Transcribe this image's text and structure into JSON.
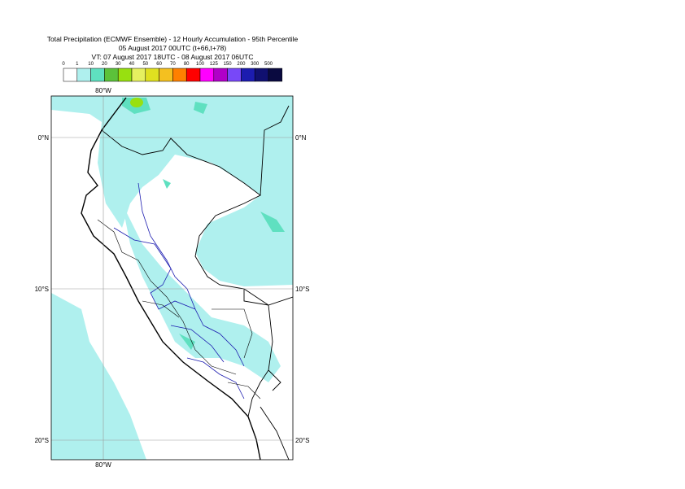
{
  "header": {
    "title": "Total Precipitation (ECMWF Ensemble) - 12 Hourly Accumulation - 95th Percentile",
    "base_time": "05 August 2017 00UTC (t+66,t+78)",
    "valid_time": "VT: 07 August 2017 18UTC - 08 August 2017 06UTC"
  },
  "legend": {
    "labels": [
      "0",
      "1",
      "10",
      "20",
      "30",
      "40",
      "50",
      "60",
      "70",
      "80",
      "100",
      "125",
      "150",
      "200",
      "300",
      "500"
    ],
    "colors": [
      "#ffffff",
      "#aff0ee",
      "#5fe0c0",
      "#5cc23a",
      "#98e010",
      "#e6f060",
      "#e0e020",
      "#f4c020",
      "#ff8000",
      "#ff0000",
      "#ff00ff",
      "#b000c8",
      "#7848f8",
      "#1c1cb0",
      "#101070",
      "#0a0a40"
    ]
  },
  "map": {
    "lon_labels": [
      "80°W",
      "80°W"
    ],
    "lat_labels": [
      "0°N",
      "0°N",
      "10°S",
      "10°S",
      "20°S",
      "20°S"
    ]
  }
}
